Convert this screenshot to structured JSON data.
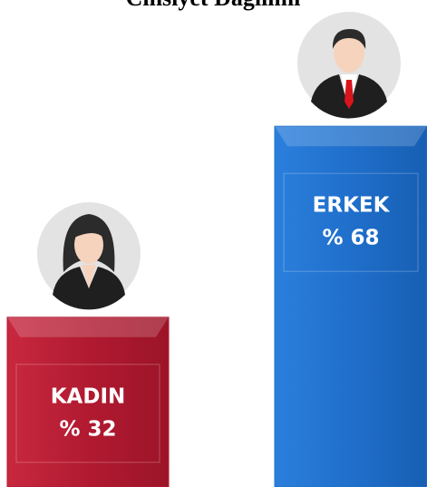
{
  "chart_data": {
    "type": "bar",
    "title": "Cinsiyet Dağılımı",
    "categories": [
      "KADIN",
      "ERKEK"
    ],
    "values": [
      32,
      68
    ],
    "value_labels": [
      "% 32",
      "% 68"
    ],
    "colors": [
      "#b11a31",
      "#1f6fcb"
    ]
  }
}
